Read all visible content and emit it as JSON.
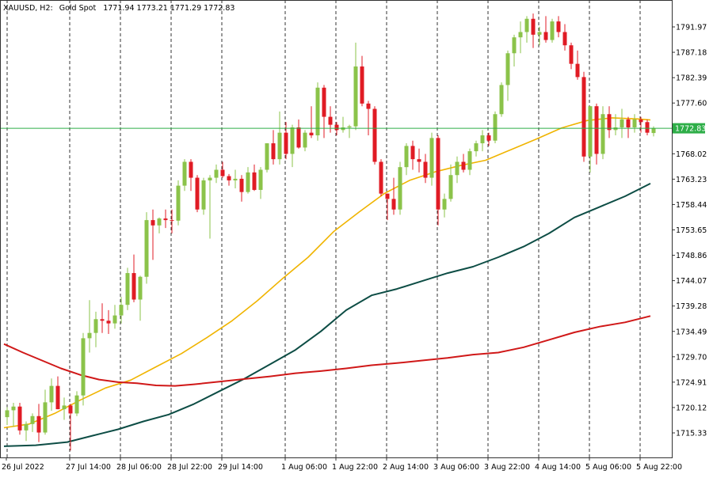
{
  "header": {
    "symbol": "XAUUSD, H2:",
    "description": "Gold Spot",
    "ohlc": "1771.94 1773.21 1771.29 1772.83"
  },
  "current_price_label": "1772.83",
  "colors": {
    "bull": "#8bc34a",
    "bear": "#e01b24",
    "ma_fast": "#f0b400",
    "ma_mid": "#0d4d45",
    "ma_slow": "#d01818",
    "price_line": "#2eae48",
    "price_label_bg": "#2eae48",
    "grid": "#333333",
    "axis": "#333333"
  },
  "chart_data": {
    "type": "candlestick",
    "y_range": [
      1711.5,
      1796.5
    ],
    "y_ticks": [
      "1715.33",
      "1720.12",
      "1724.91",
      "1729.70",
      "1734.49",
      "1739.28",
      "1744.07",
      "1748.86",
      "1753.65",
      "1758.44",
      "1763.23",
      "1768.02",
      "1772.83",
      "1777.60",
      "1782.39",
      "1787.18",
      "1791.97"
    ],
    "x_labels": [
      "26 Jul 2022",
      "27 Jul 14:00",
      "28 Jul 06:00",
      "28 Jul 22:00",
      "29 Jul 14:00",
      "1 Aug 06:00",
      "1 Aug 22:00",
      "2 Aug 14:00",
      "3 Aug 06:00",
      "3 Aug 22:00",
      "4 Aug 14:00",
      "5 Aug 06:00",
      "5 Aug 22:00"
    ],
    "x_label_bars": [
      0,
      10,
      18,
      26,
      34,
      44,
      52,
      60,
      68,
      76,
      84,
      92,
      100
    ],
    "candles": [
      [
        1718.3,
        1720.2,
        1716.8,
        1719.6
      ],
      [
        1719.6,
        1721.0,
        1716.5,
        1720.3
      ],
      [
        1720.3,
        1721.0,
        1715.0,
        1715.8
      ],
      [
        1715.8,
        1717.5,
        1713.8,
        1717.0
      ],
      [
        1717.0,
        1719.0,
        1715.5,
        1718.5
      ],
      [
        1718.5,
        1720.8,
        1713.6,
        1715.4
      ],
      [
        1715.4,
        1723.5,
        1715.0,
        1721.1
      ],
      [
        1721.1,
        1725.6,
        1719.5,
        1724.2
      ],
      [
        1724.2,
        1726.0,
        1719.8,
        1719.8
      ],
      [
        1719.8,
        1722.0,
        1717.8,
        1720.5
      ],
      [
        1720.5,
        1720.8,
        1712.0,
        1719.0
      ],
      [
        1719.0,
        1723.2,
        1718.5,
        1722.4
      ],
      [
        1722.4,
        1734.2,
        1720.5,
        1733.2
      ],
      [
        1733.2,
        1740.4,
        1730.5,
        1734.2
      ],
      [
        1734.2,
        1738.2,
        1731.5,
        1736.8
      ],
      [
        1736.8,
        1739.8,
        1734.2,
        1736.5
      ],
      [
        1736.5,
        1738.5,
        1734.0,
        1736.0
      ],
      [
        1736.0,
        1739.5,
        1735.0,
        1737.5
      ],
      [
        1737.5,
        1741.0,
        1736.0,
        1739.5
      ],
      [
        1739.5,
        1746.5,
        1738.5,
        1745.5
      ],
      [
        1745.5,
        1749.0,
        1740.0,
        1740.5
      ],
      [
        1740.5,
        1745.0,
        1736.5,
        1744.8
      ],
      [
        1744.8,
        1757.0,
        1743.5,
        1755.5
      ],
      [
        1755.5,
        1757.5,
        1748.0,
        1754.5
      ],
      [
        1754.5,
        1756.0,
        1753.0,
        1755.8
      ],
      [
        1755.8,
        1757.5,
        1754.0,
        1755.5
      ],
      [
        1755.5,
        1757.5,
        1753.0,
        1755.4
      ],
      [
        1755.4,
        1763.0,
        1754.5,
        1762.0
      ],
      [
        1762.0,
        1767.0,
        1761.0,
        1766.5
      ],
      [
        1766.5,
        1767.0,
        1761.0,
        1763.5
      ],
      [
        1763.5,
        1764.0,
        1757.0,
        1757.5
      ],
      [
        1757.5,
        1763.5,
        1756.5,
        1763.0
      ],
      [
        1763.0,
        1764.0,
        1752.0,
        1763.5
      ],
      [
        1763.5,
        1766.0,
        1762.5,
        1765.0
      ],
      [
        1765.0,
        1766.5,
        1763.5,
        1763.8
      ],
      [
        1763.8,
        1764.2,
        1762.0,
        1763.0
      ],
      [
        1763.0,
        1765.0,
        1761.5,
        1763.3
      ],
      [
        1763.3,
        1764.0,
        1759.0,
        1760.8
      ],
      [
        1760.8,
        1765.5,
        1760.5,
        1764.5
      ],
      [
        1764.5,
        1766.0,
        1761.0,
        1761.2
      ],
      [
        1761.2,
        1765.5,
        1759.5,
        1765.0
      ],
      [
        1765.0,
        1770.0,
        1764.5,
        1770.0
      ],
      [
        1770.0,
        1772.5,
        1766.0,
        1767.0
      ],
      [
        1767.0,
        1776.0,
        1766.0,
        1772.0
      ],
      [
        1772.0,
        1774.0,
        1767.0,
        1768.0
      ],
      [
        1768.0,
        1773.5,
        1765.5,
        1773.0
      ],
      [
        1773.0,
        1774.5,
        1769.0,
        1769.2
      ],
      [
        1769.2,
        1772.5,
        1768.5,
        1772.0
      ],
      [
        1772.0,
        1777.0,
        1771.0,
        1771.5
      ],
      [
        1771.5,
        1781.5,
        1770.5,
        1780.5
      ],
      [
        1780.5,
        1781.0,
        1771.0,
        1775.0
      ],
      [
        1775.0,
        1777.0,
        1772.0,
        1773.5
      ],
      [
        1773.5,
        1774.0,
        1771.5,
        1772.5
      ],
      [
        1772.5,
        1775.0,
        1772.0,
        1773.0
      ],
      [
        1773.0,
        1773.5,
        1771.0,
        1773.2
      ],
      [
        1773.2,
        1789.0,
        1772.5,
        1784.5
      ],
      [
        1784.5,
        1786.5,
        1777.0,
        1777.5
      ],
      [
        1777.5,
        1778.0,
        1771.5,
        1776.5
      ],
      [
        1776.5,
        1777.0,
        1766.0,
        1766.5
      ],
      [
        1766.5,
        1767.0,
        1760.0,
        1760.5
      ],
      [
        1760.5,
        1760.5,
        1755.5,
        1759.5
      ],
      [
        1759.5,
        1763.5,
        1756.5,
        1757.5
      ],
      [
        1757.5,
        1766.5,
        1756.5,
        1765.5
      ],
      [
        1765.5,
        1770.0,
        1764.0,
        1769.5
      ],
      [
        1769.5,
        1770.5,
        1765.0,
        1767.0
      ],
      [
        1767.0,
        1769.0,
        1764.5,
        1766.5
      ],
      [
        1766.5,
        1768.0,
        1762.5,
        1763.5
      ],
      [
        1763.5,
        1772.0,
        1762.0,
        1771.0
      ],
      [
        1771.0,
        1771.5,
        1754.5,
        1757.5
      ],
      [
        1757.5,
        1760.5,
        1756.0,
        1759.5
      ],
      [
        1759.5,
        1766.0,
        1759.0,
        1764.0
      ],
      [
        1764.0,
        1767.5,
        1762.5,
        1766.5
      ],
      [
        1766.5,
        1768.0,
        1764.5,
        1765.0
      ],
      [
        1765.0,
        1769.0,
        1764.0,
        1768.5
      ],
      [
        1768.5,
        1770.5,
        1767.5,
        1770.0
      ],
      [
        1770.0,
        1772.5,
        1768.5,
        1771.5
      ],
      [
        1771.5,
        1772.0,
        1769.5,
        1770.5
      ],
      [
        1770.5,
        1776.0,
        1770.0,
        1775.5
      ],
      [
        1775.5,
        1781.5,
        1775.0,
        1781.0
      ],
      [
        1781.0,
        1787.5,
        1778.0,
        1787.0
      ],
      [
        1787.0,
        1790.5,
        1784.5,
        1790.0
      ],
      [
        1790.0,
        1793.0,
        1787.0,
        1791.0
      ],
      [
        1791.0,
        1794.0,
        1789.0,
        1793.5
      ],
      [
        1793.5,
        1794.5,
        1788.0,
        1790.5
      ],
      [
        1790.5,
        1792.0,
        1788.5,
        1791.0
      ],
      [
        1791.0,
        1794.0,
        1789.0,
        1789.5
      ],
      [
        1789.5,
        1793.5,
        1789.0,
        1793.0
      ],
      [
        1793.0,
        1794.0,
        1790.0,
        1791.0
      ],
      [
        1791.0,
        1792.5,
        1787.5,
        1788.5
      ],
      [
        1788.5,
        1789.0,
        1784.0,
        1785.0
      ],
      [
        1785.0,
        1787.5,
        1782.0,
        1782.5
      ],
      [
        1782.5,
        1783.5,
        1766.5,
        1767.5
      ],
      [
        1767.5,
        1777.0,
        1764.5,
        1777.0
      ],
      [
        1777.0,
        1777.5,
        1766.0,
        1768.0
      ],
      [
        1768.0,
        1777.0,
        1767.0,
        1775.5
      ],
      [
        1775.5,
        1777.0,
        1771.0,
        1772.5
      ],
      [
        1772.5,
        1775.5,
        1771.5,
        1773.0
      ],
      [
        1773.0,
        1776.5,
        1771.0,
        1774.5
      ],
      [
        1774.5,
        1775.0,
        1771.0,
        1773.0
      ],
      [
        1773.0,
        1775.5,
        1772.0,
        1774.5
      ],
      [
        1774.5,
        1775.0,
        1772.0,
        1774.0
      ],
      [
        1774.0,
        1774.5,
        1771.5,
        1772.0
      ],
      [
        1771.94,
        1773.21,
        1771.29,
        1772.83
      ]
    ],
    "series": [
      {
        "values": [
          [
            0,
            1716.3
          ],
          [
            4,
            1717.0
          ],
          [
            8,
            1719.0
          ],
          [
            12,
            1721.5
          ],
          [
            16,
            1723.8
          ],
          [
            20,
            1725.3
          ],
          [
            24,
            1727.8
          ],
          [
            28,
            1730.3
          ],
          [
            32,
            1733.3
          ],
          [
            36,
            1736.5
          ],
          [
            40,
            1740.3
          ],
          [
            44,
            1744.5
          ],
          [
            48,
            1748.5
          ],
          [
            52,
            1753.3
          ],
          [
            56,
            1757.0
          ],
          [
            60,
            1760.5
          ],
          [
            64,
            1763.0
          ],
          [
            68,
            1764.6
          ],
          [
            72,
            1765.8
          ],
          [
            76,
            1766.8
          ],
          [
            80,
            1768.8
          ],
          [
            84,
            1770.8
          ],
          [
            88,
            1772.9
          ],
          [
            92,
            1774.3
          ],
          [
            96,
            1774.8
          ],
          [
            100,
            1774.6
          ],
          [
            102,
            1774.4
          ]
        ]
      },
      {
        "values": [
          [
            0,
            1712.8
          ],
          [
            5,
            1713.0
          ],
          [
            10,
            1713.6
          ],
          [
            14,
            1714.8
          ],
          [
            18,
            1716.0
          ],
          [
            22,
            1717.5
          ],
          [
            26,
            1718.8
          ],
          [
            30,
            1720.8
          ],
          [
            34,
            1723.2
          ],
          [
            38,
            1725.6
          ],
          [
            42,
            1728.3
          ],
          [
            46,
            1731.0
          ],
          [
            50,
            1734.5
          ],
          [
            54,
            1738.5
          ],
          [
            58,
            1741.3
          ],
          [
            62,
            1742.5
          ],
          [
            66,
            1744.0
          ],
          [
            70,
            1745.5
          ],
          [
            74,
            1746.7
          ],
          [
            78,
            1748.5
          ],
          [
            82,
            1750.5
          ],
          [
            86,
            1753.0
          ],
          [
            90,
            1756.0
          ],
          [
            94,
            1758.0
          ],
          [
            98,
            1760.0
          ],
          [
            102,
            1762.4
          ]
        ]
      },
      {
        "values": [
          [
            0,
            1732.1
          ],
          [
            3,
            1730.5
          ],
          [
            6,
            1729.0
          ],
          [
            9,
            1727.5
          ],
          [
            12,
            1726.3
          ],
          [
            15,
            1725.4
          ],
          [
            18,
            1724.9
          ],
          [
            21,
            1724.7
          ],
          [
            24,
            1724.3
          ],
          [
            27,
            1724.2
          ],
          [
            30,
            1724.5
          ],
          [
            34,
            1725.0
          ],
          [
            38,
            1725.5
          ],
          [
            42,
            1726.0
          ],
          [
            46,
            1726.6
          ],
          [
            50,
            1727.0
          ],
          [
            54,
            1727.5
          ],
          [
            58,
            1728.1
          ],
          [
            62,
            1728.5
          ],
          [
            66,
            1729.0
          ],
          [
            70,
            1729.5
          ],
          [
            74,
            1730.1
          ],
          [
            78,
            1730.5
          ],
          [
            82,
            1731.5
          ],
          [
            86,
            1732.9
          ],
          [
            90,
            1734.3
          ],
          [
            94,
            1735.4
          ],
          [
            98,
            1736.2
          ],
          [
            102,
            1737.4
          ]
        ]
      }
    ]
  }
}
